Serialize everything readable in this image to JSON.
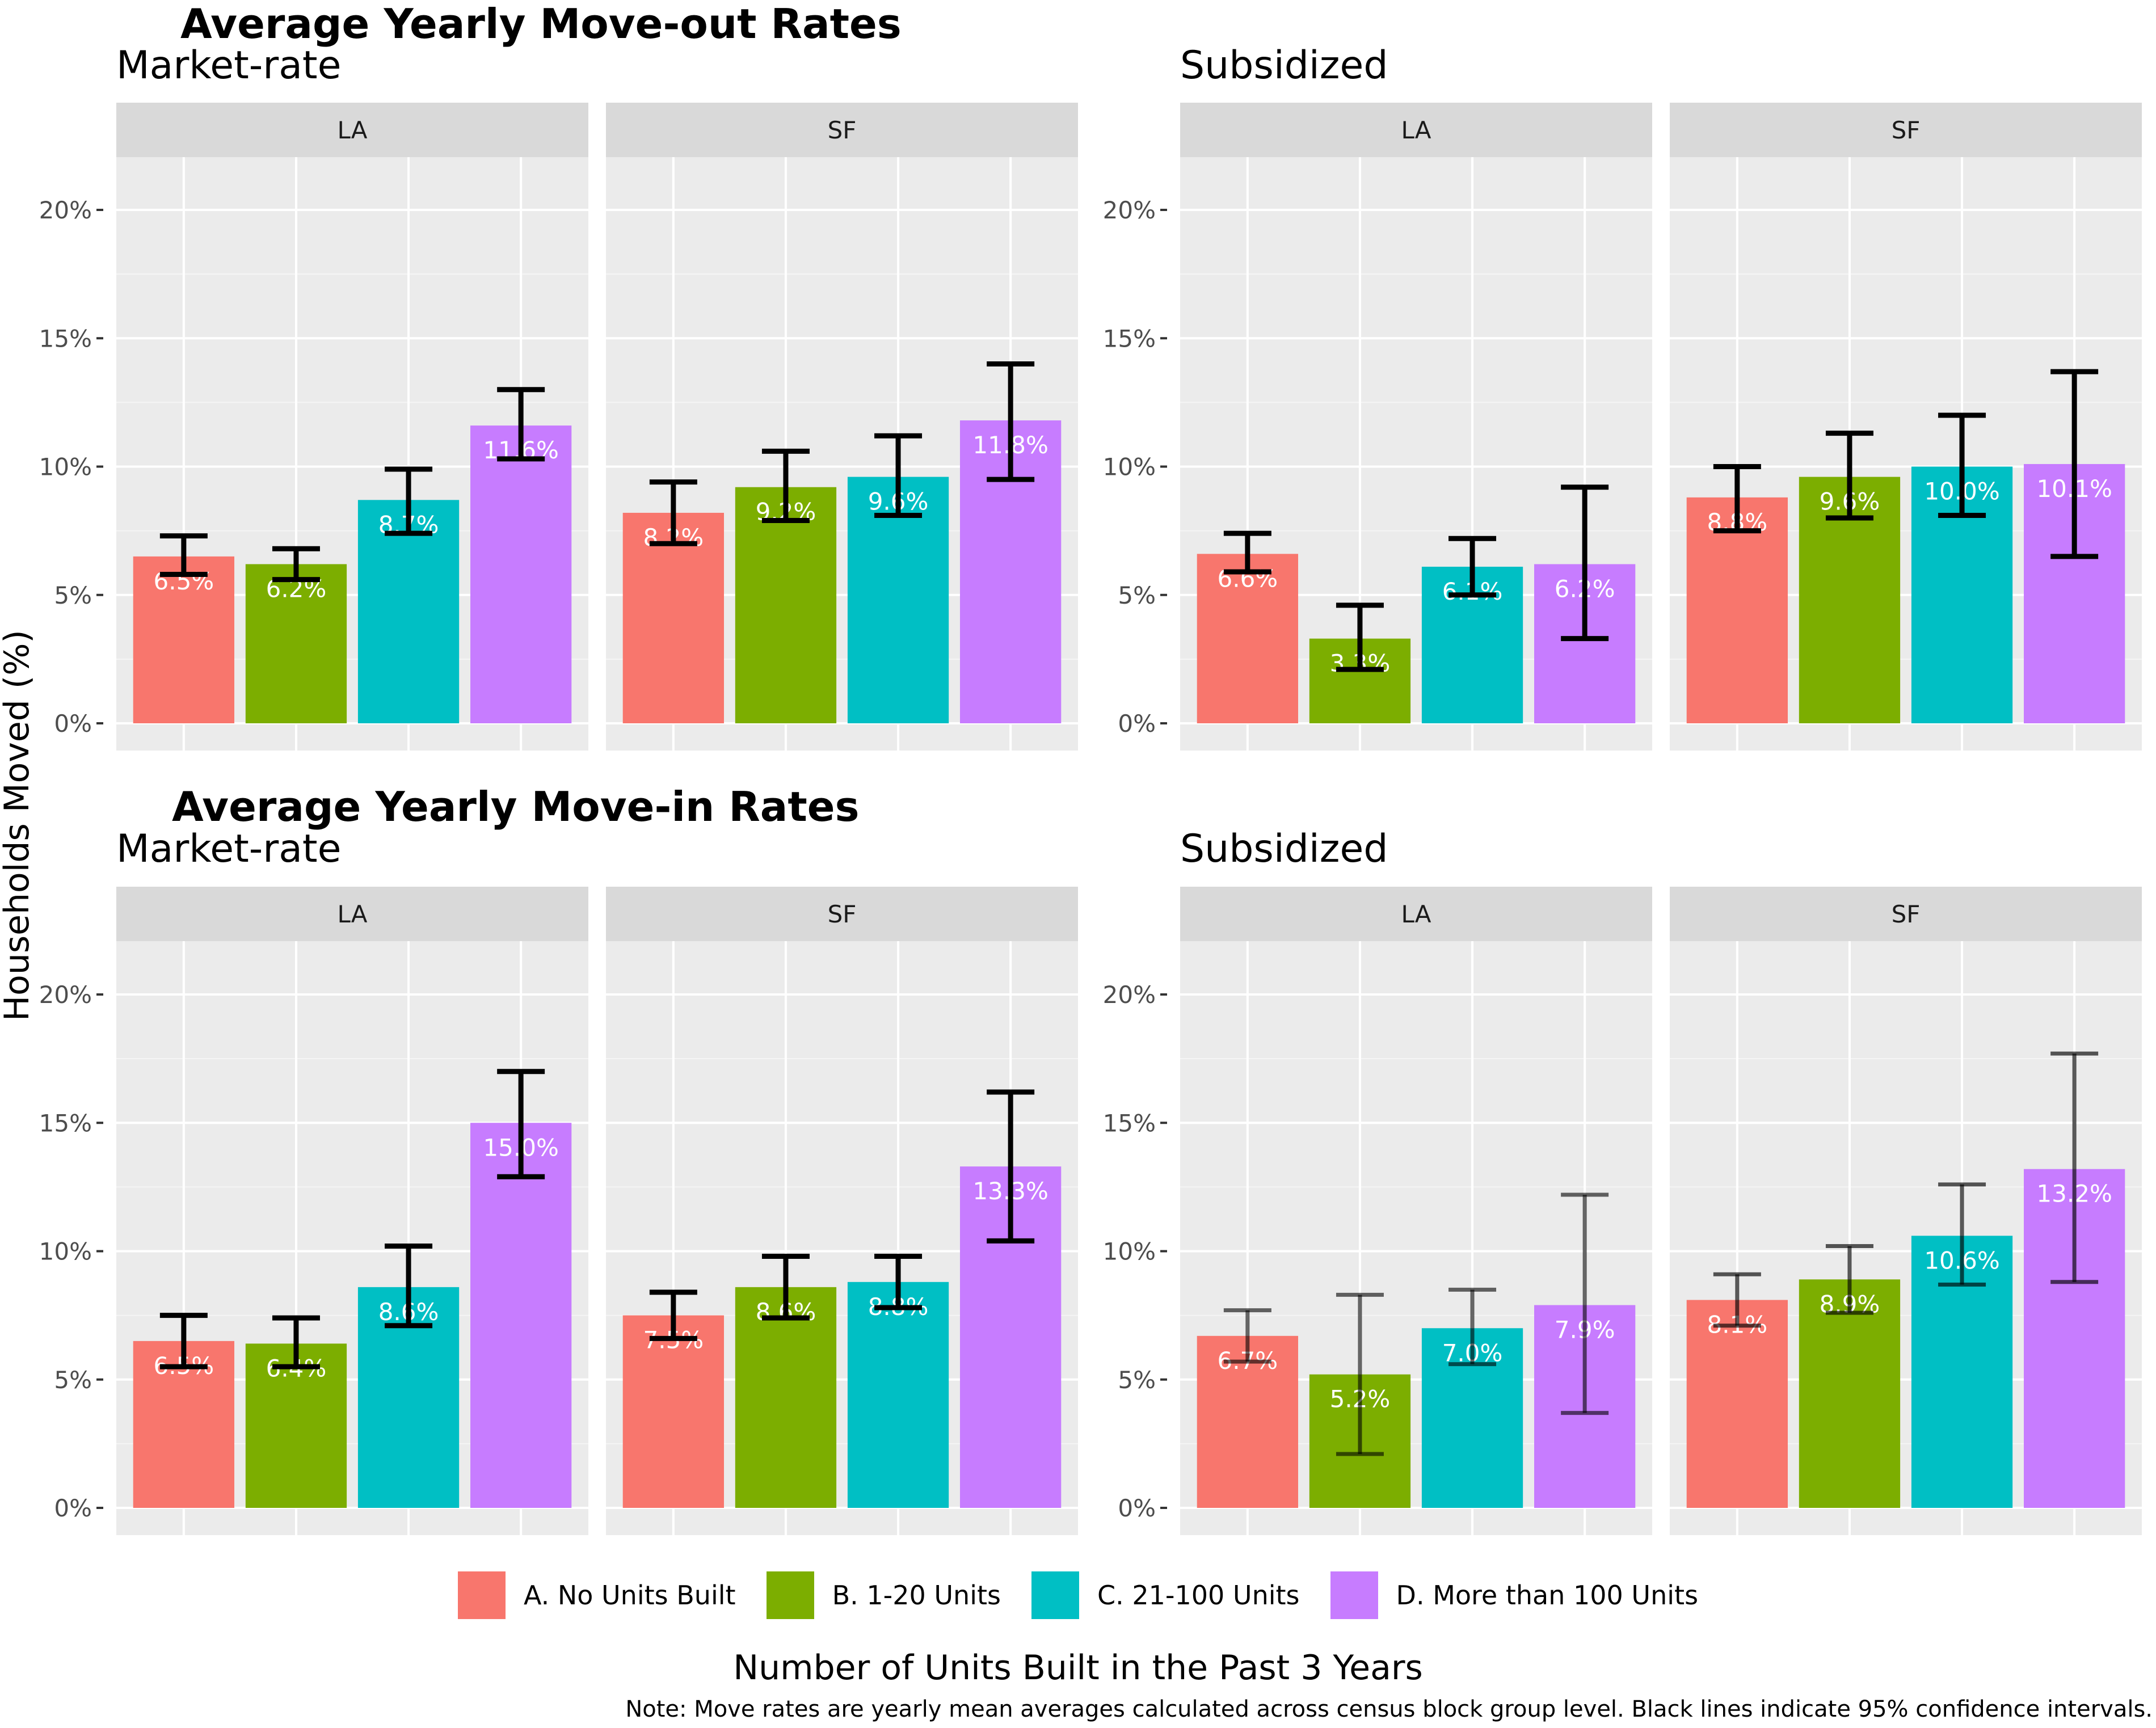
{
  "titles": {
    "moveout": "Average Yearly Move-out Rates",
    "movein": "Average Yearly Move-in Rates"
  },
  "y_axis_label": "Households Moved (%)",
  "x_axis_label": "Number of Units Built in the Past 3 Years",
  "note": "Note: Move rates are yearly mean averages calculated across census block group level. Black lines indicate 95% confidence intervals.",
  "legend": [
    {
      "label": "A. No Units Built",
      "color": "#F8766D"
    },
    {
      "label": "B. 1-20 Units",
      "color": "#7CAE00"
    },
    {
      "label": "C. 21-100 Units",
      "color": "#00BFC4"
    },
    {
      "label": "D. More than 100 Units",
      "color": "#C77CFF"
    }
  ],
  "chart_data": [
    {
      "type": "bar",
      "title": "Average Yearly Move-out Rates",
      "subtitle": "Market-rate",
      "ylabel": "Households Moved (%)",
      "ylim": [
        0,
        22
      ],
      "yticks": [
        "0%",
        "5%",
        "10%",
        "15%",
        "20%"
      ],
      "categories": [
        "A. No Units Built",
        "B. 1-20 Units",
        "C. 21-100 Units",
        "D. More than 100 Units"
      ],
      "facets": [
        {
          "name": "LA",
          "values": [
            6.5,
            6.2,
            8.7,
            11.6
          ],
          "labels": [
            "6.5%",
            "6.2%",
            "8.7%",
            "11.6%"
          ],
          "ci_low": [
            5.8,
            5.6,
            7.4,
            10.3
          ],
          "ci_high": [
            7.3,
            6.8,
            9.9,
            13.0
          ]
        },
        {
          "name": "SF",
          "values": [
            8.2,
            9.2,
            9.6,
            11.8
          ],
          "labels": [
            "8.2%",
            "9.2%",
            "9.6%",
            "11.8%"
          ],
          "ci_low": [
            7.0,
            7.9,
            8.1,
            9.5
          ],
          "ci_high": [
            9.4,
            10.6,
            11.2,
            14.0
          ]
        }
      ]
    },
    {
      "type": "bar",
      "title": "Average Yearly Move-out Rates",
      "subtitle": "Subsidized",
      "ylabel": "Households Moved (%)",
      "ylim": [
        0,
        22
      ],
      "yticks": [
        "0%",
        "5%",
        "10%",
        "15%",
        "20%"
      ],
      "categories": [
        "A. No Units Built",
        "B. 1-20 Units",
        "C. 21-100 Units",
        "D. More than 100 Units"
      ],
      "facets": [
        {
          "name": "LA",
          "values": [
            6.6,
            3.3,
            6.1,
            6.2
          ],
          "labels": [
            "6.6%",
            "3.3%",
            "6.1%",
            "6.2%"
          ],
          "ci_low": [
            5.9,
            2.1,
            5.0,
            3.3
          ],
          "ci_high": [
            7.4,
            4.6,
            7.2,
            9.2
          ]
        },
        {
          "name": "SF",
          "values": [
            8.8,
            9.6,
            10.0,
            10.1
          ],
          "labels": [
            "8.8%",
            "9.6%",
            "10.0%",
            "10.1%"
          ],
          "ci_low": [
            7.5,
            8.0,
            8.1,
            6.5
          ],
          "ci_high": [
            10.0,
            11.3,
            12.0,
            13.7
          ]
        }
      ]
    },
    {
      "type": "bar",
      "title": "Average Yearly Move-in Rates",
      "subtitle": "Market-rate",
      "ylabel": "Households Moved (%)",
      "ylim": [
        0,
        22
      ],
      "yticks": [
        "0%",
        "5%",
        "10%",
        "15%",
        "20%"
      ],
      "categories": [
        "A. No Units Built",
        "B. 1-20 Units",
        "C. 21-100 Units",
        "D. More than 100 Units"
      ],
      "facets": [
        {
          "name": "LA",
          "values": [
            6.5,
            6.4,
            8.6,
            15.0
          ],
          "labels": [
            "6.5%",
            "6.4%",
            "8.6%",
            "15.0%"
          ],
          "ci_low": [
            5.5,
            5.5,
            7.1,
            12.9
          ],
          "ci_high": [
            7.5,
            7.4,
            10.2,
            17.0
          ]
        },
        {
          "name": "SF",
          "values": [
            7.5,
            8.6,
            8.8,
            13.3
          ],
          "labels": [
            "7.5%",
            "8.6%",
            "8.8%",
            "13.3%"
          ],
          "ci_low": [
            6.6,
            7.4,
            7.8,
            10.4
          ],
          "ci_high": [
            8.4,
            9.8,
            9.8,
            16.2
          ]
        }
      ]
    },
    {
      "type": "bar",
      "title": "Average Yearly Move-in Rates",
      "subtitle": "Subsidized",
      "ylabel": "Households Moved (%)",
      "ylim": [
        0,
        22
      ],
      "yticks": [
        "0%",
        "5%",
        "10%",
        "15%",
        "20%"
      ],
      "categories": [
        "A. No Units Built",
        "B. 1-20 Units",
        "C. 21-100 Units",
        "D. More than 100 Units"
      ],
      "facets": [
        {
          "name": "LA",
          "values": [
            6.7,
            5.2,
            7.0,
            7.9
          ],
          "labels": [
            "6.7%",
            "5.2%",
            "7.0%",
            "7.9%"
          ],
          "ci_low": [
            5.7,
            2.1,
            5.6,
            3.7
          ],
          "ci_high": [
            7.7,
            8.3,
            8.5,
            12.2
          ]
        },
        {
          "name": "SF",
          "values": [
            8.1,
            8.9,
            10.6,
            13.2
          ],
          "labels": [
            "8.1%",
            "8.9%",
            "10.6%",
            "13.2%"
          ],
          "ci_low": [
            7.1,
            7.6,
            8.7,
            8.8
          ],
          "ci_high": [
            9.1,
            10.2,
            12.6,
            17.7
          ]
        }
      ]
    }
  ]
}
